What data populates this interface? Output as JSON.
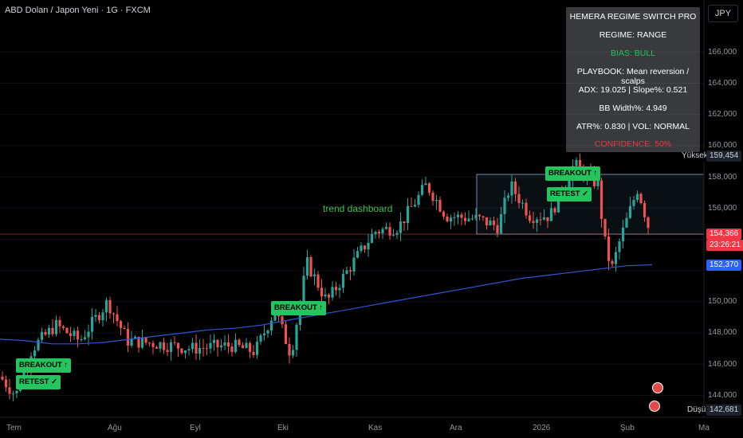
{
  "header": {
    "symbol": "ABD Dolan / Japon Yeni · 1G · FXCM",
    "currency": "JPY"
  },
  "price_axis": [
    "166,000",
    "164,000",
    "162,000",
    "160,000",
    "158,000",
    "156,000",
    "150,000",
    "148,000",
    "146,000",
    "144,000"
  ],
  "time_axis": [
    "Tem",
    "Ağu",
    "Eyl",
    "Eki",
    "Kas",
    "Ara",
    "2026",
    "Şub",
    "Ma"
  ],
  "tags": {
    "high_label": "Yüksek",
    "high_value": "159,454",
    "last_value": "154,366",
    "countdown": "23:26:21",
    "ma_value": "152,370",
    "low_label": "Düşük",
    "low_value": "142,681"
  },
  "panel": {
    "title": "HEMERA REGIME SWITCH PRO",
    "regime": "REGIME: RANGE",
    "bias": "BIAS: BULL",
    "playbook": "PLAYBOOK: Mean reversion / scalps",
    "adx": "ADX: 19.025 | Slope%: 0.521",
    "bbw": "BB Width%: 4.949",
    "atr": "ATR%: 0.830 | VOL: NORMAL",
    "confidence": "CONFIDENCE: 50%"
  },
  "signals": {
    "breakout_1": "BREAKOUT ↑",
    "retest_1": "RETEST ✓",
    "breakout_2": "BREAKOUT ↑",
    "breakout_3": "BREAKOUT ↑",
    "retest_3": "RETEST ✓"
  },
  "annotation": "trend dashboard",
  "colors": {
    "up": "#26a69a",
    "down": "#ef5350",
    "ma": "#2f56d6",
    "signal": "#22c55e",
    "bias": "#22c55e",
    "confidence": "#f23645"
  },
  "chart_data": {
    "type": "candlestick",
    "ylim": [
      142,
      167
    ],
    "ma_series": [
      147.6,
      147.5,
      147.3,
      147.3,
      147.4,
      147.6,
      147.8,
      148.0,
      148.2,
      148.3,
      148.5,
      148.8,
      149.1,
      149.4,
      149.7,
      150.0,
      150.3,
      150.6,
      150.9,
      151.2,
      151.5,
      151.7,
      151.9,
      152.1,
      152.3,
      152.37
    ],
    "range_box": {
      "low": 154.5,
      "high": 158.2
    },
    "last_price": 154.366
  }
}
